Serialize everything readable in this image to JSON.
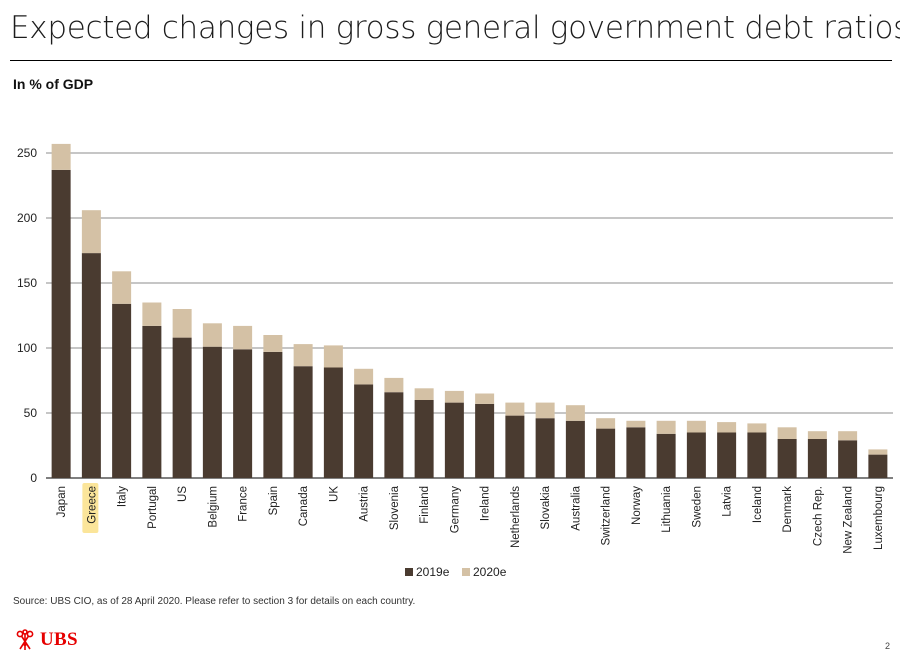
{
  "header": {
    "title": "Expected changes in gross general government debt ratios",
    "subtitle": "In % of GDP"
  },
  "footer": {
    "source": "Source: UBS CIO, as of 28 April 2020. Please refer to section 3 for details on each country.",
    "logo_text": "UBS",
    "page_number": "2"
  },
  "colors": {
    "series_2019": "#4a3b30",
    "series_2020": "#d4c1a5",
    "highlight": "#fbe59a",
    "grid": "#666666",
    "brand": "#e60000"
  },
  "chart_data": {
    "type": "bar",
    "stacked": true,
    "title": "Expected changes in gross general government debt ratios",
    "ylabel": "In % of GDP",
    "ylim": [
      0,
      250
    ],
    "yticks": [
      0,
      50,
      100,
      150,
      200,
      250
    ],
    "grid": true,
    "legend_position": "bottom-center",
    "highlighted_category": "Greece",
    "categories": [
      "Japan",
      "Greece",
      "Italy",
      "Portugal",
      "US",
      "Belgium",
      "France",
      "Spain",
      "Canada",
      "UK",
      "Austria",
      "Slovenia",
      "Finland",
      "Germany",
      "Ireland",
      "Netherlands",
      "Slovakia",
      "Australia",
      "Switzerland",
      "Norway",
      "Lithuania",
      "Sweden",
      "Latvia",
      "Iceland",
      "Denmark",
      "Czech Rep.",
      "New Zealand",
      "Luxembourg"
    ],
    "series": [
      {
        "name": "2019e",
        "values": [
          237,
          173,
          134,
          117,
          108,
          101,
          99,
          97,
          86,
          85,
          72,
          66,
          60,
          58,
          57,
          48,
          46,
          44,
          38,
          39,
          34,
          35,
          35,
          35,
          30,
          30,
          29,
          18
        ]
      },
      {
        "name": "2020e",
        "values": [
          20,
          33,
          25,
          18,
          22,
          18,
          18,
          13,
          17,
          17,
          12,
          11,
          9,
          9,
          8,
          10,
          12,
          12,
          8,
          5,
          10,
          9,
          8,
          7,
          9,
          6,
          7,
          4
        ]
      }
    ]
  }
}
